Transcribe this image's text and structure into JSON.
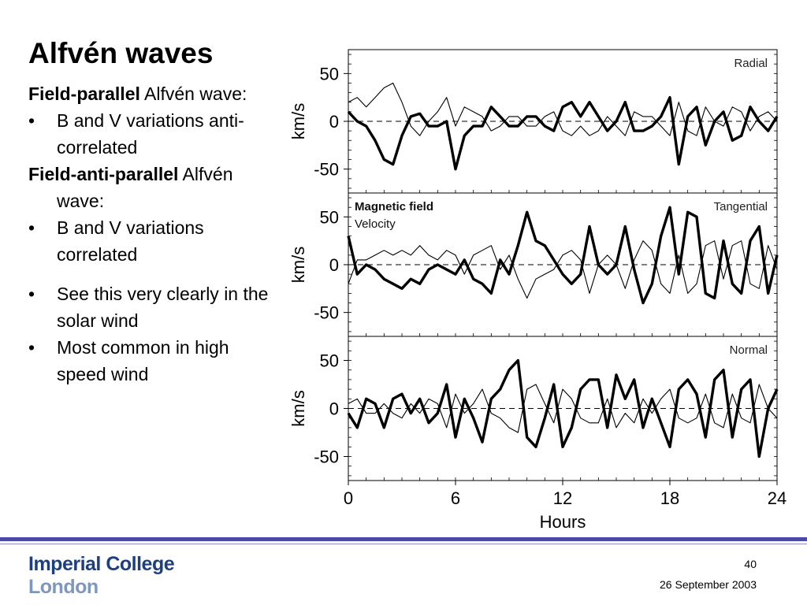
{
  "slide": {
    "title": "Alfvén waves",
    "para1_bold": "Field-parallel",
    "para1_rest": " Alfvén wave:",
    "bullet1": "B and V variations anti-correlated",
    "para2_bold": "Field-anti-parallel",
    "para2_rest": " Alfvén wave:",
    "bullet2": "B and V variations correlated",
    "bullet3": "See this very clearly in the solar wind",
    "bullet4": "Most common in high speed wind",
    "bullet_glyph": "•"
  },
  "footer": {
    "logo_line1": "Imperial College",
    "logo_line2": "London",
    "page_number": "40",
    "date": "26 September 2003"
  },
  "colors": {
    "rule": "#4a4aa6",
    "logo_primary": "#1d3f80",
    "logo_secondary": "#7f96bd"
  },
  "chart_data": {
    "type": "line",
    "xlabel": "Hours",
    "ylabel": "km/s",
    "xlim": [
      0,
      24
    ],
    "ylim": [
      -75,
      75
    ],
    "xticks": [
      0,
      6,
      12,
      18,
      24
    ],
    "yticks": [
      50,
      0,
      -50
    ],
    "legend": [
      "Magnetic field",
      "Velocity"
    ],
    "legend_location": "top-left of middle panel",
    "zero_line": "dashed",
    "x": [
      0,
      0.5,
      1,
      1.5,
      2,
      2.5,
      3,
      3.5,
      4,
      4.5,
      5,
      5.5,
      6,
      6.5,
      7,
      7.5,
      8,
      8.5,
      9,
      9.5,
      10,
      10.5,
      11,
      11.5,
      12,
      12.5,
      13,
      13.5,
      14,
      14.5,
      15,
      15.5,
      16,
      16.5,
      17,
      17.5,
      18,
      18.5,
      19,
      19.5,
      20,
      20.5,
      21,
      21.5,
      22,
      22.5,
      23,
      23.5,
      24
    ],
    "panels": [
      {
        "name": "Radial",
        "series": [
          {
            "name": "Magnetic field",
            "values": [
              10,
              0,
              -5,
              -20,
              -40,
              -45,
              -15,
              5,
              8,
              -5,
              -5,
              0,
              -50,
              -15,
              -5,
              -5,
              15,
              5,
              -5,
              -5,
              5,
              5,
              -5,
              -10,
              15,
              20,
              5,
              20,
              5,
              -10,
              0,
              20,
              -10,
              -10,
              -5,
              5,
              25,
              -45,
              5,
              15,
              -25,
              0,
              10,
              -20,
              -15,
              15,
              0,
              -10,
              5
            ]
          },
          {
            "name": "Velocity",
            "values": [
              20,
              25,
              15,
              25,
              35,
              40,
              20,
              -5,
              -15,
              0,
              10,
              25,
              -5,
              15,
              10,
              5,
              -10,
              -5,
              5,
              5,
              -5,
              -5,
              5,
              10,
              -10,
              -15,
              -5,
              -15,
              -10,
              5,
              -5,
              -15,
              10,
              5,
              5,
              -5,
              -15,
              20,
              -10,
              -15,
              15,
              0,
              -5,
              15,
              10,
              -10,
              5,
              10,
              0
            ]
          }
        ]
      },
      {
        "name": "Tangential",
        "series": [
          {
            "name": "Magnetic field",
            "values": [
              30,
              -10,
              0,
              -5,
              -15,
              -20,
              -25,
              -15,
              -20,
              -5,
              0,
              -5,
              -10,
              5,
              -15,
              -20,
              -30,
              5,
              -10,
              20,
              55,
              25,
              20,
              5,
              -10,
              -20,
              -10,
              40,
              0,
              -10,
              0,
              40,
              -5,
              -40,
              -20,
              30,
              60,
              -10,
              55,
              50,
              -30,
              -35,
              25,
              -20,
              -30,
              25,
              40,
              -30,
              10
            ]
          },
          {
            "name": "Velocity",
            "values": [
              -20,
              5,
              5,
              10,
              15,
              10,
              15,
              10,
              20,
              10,
              5,
              15,
              10,
              -10,
              10,
              15,
              20,
              -5,
              10,
              -15,
              -35,
              -15,
              -10,
              -5,
              10,
              15,
              5,
              -30,
              0,
              10,
              0,
              -25,
              5,
              25,
              15,
              -20,
              -30,
              10,
              -30,
              -20,
              20,
              25,
              -15,
              20,
              25,
              -20,
              -25,
              20,
              -5
            ]
          }
        ]
      },
      {
        "name": "Normal",
        "series": [
          {
            "name": "Magnetic field",
            "values": [
              -5,
              -20,
              10,
              5,
              -20,
              10,
              15,
              -5,
              10,
              -15,
              -5,
              25,
              -30,
              10,
              -10,
              -35,
              10,
              20,
              40,
              50,
              -30,
              -40,
              -10,
              25,
              -40,
              -20,
              20,
              30,
              30,
              -20,
              35,
              10,
              30,
              -20,
              10,
              -15,
              -40,
              20,
              30,
              15,
              -30,
              30,
              40,
              -30,
              20,
              30,
              -50,
              0,
              20
            ]
          },
          {
            "name": "Velocity",
            "values": [
              5,
              10,
              -5,
              -5,
              5,
              -5,
              -10,
              5,
              -5,
              10,
              5,
              -20,
              15,
              -5,
              5,
              20,
              -5,
              -10,
              -20,
              -25,
              20,
              25,
              5,
              -15,
              20,
              10,
              -10,
              -15,
              -15,
              10,
              -20,
              -5,
              -15,
              10,
              -5,
              10,
              20,
              -10,
              -15,
              -10,
              15,
              -15,
              -20,
              15,
              -10,
              -15,
              25,
              0,
              -10
            ]
          }
        ]
      }
    ]
  }
}
